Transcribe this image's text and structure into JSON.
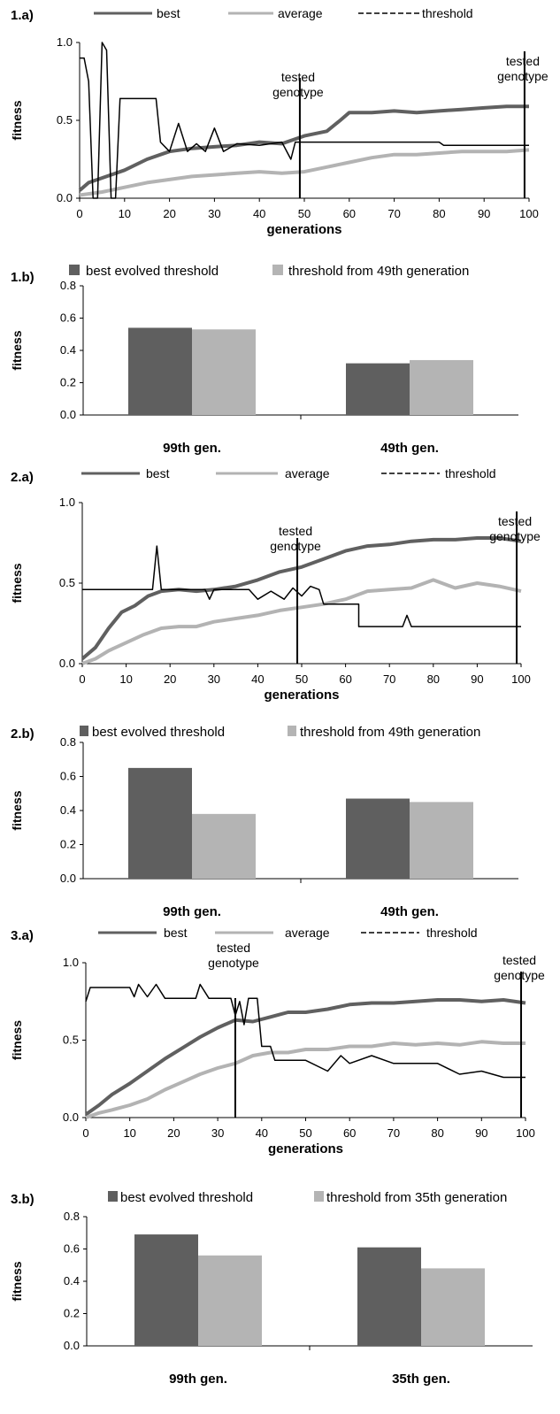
{
  "colors": {
    "best": "#606060",
    "average": "#b3b3b3",
    "threshold": "#000000",
    "bar_best": "#5f5f5f",
    "bar_thr": "#b4b4b4"
  },
  "chart_data": [
    {
      "id": "1a",
      "panel_label": "1.a)",
      "type": "line",
      "xlabel": "generations",
      "ylabel": "fitness",
      "xlim": [
        0,
        100
      ],
      "ylim": [
        0,
        1
      ],
      "xticks": [
        "0",
        "10",
        "20",
        "30",
        "40",
        "50",
        "60",
        "70",
        "80",
        "90",
        "100"
      ],
      "yticks": [
        "0.0",
        "0.5",
        "1.0"
      ],
      "legend": [
        "best",
        "average",
        "threshold"
      ],
      "annotations": [
        {
          "text": "tested genotype",
          "x": 49
        },
        {
          "text": "tested genotype",
          "x": 99
        }
      ],
      "series": [
        {
          "name": "best",
          "points": [
            [
              0,
              0.05
            ],
            [
              2,
              0.1
            ],
            [
              5,
              0.13
            ],
            [
              10,
              0.18
            ],
            [
              15,
              0.25
            ],
            [
              20,
              0.3
            ],
            [
              25,
              0.32
            ],
            [
              30,
              0.33
            ],
            [
              35,
              0.34
            ],
            [
              40,
              0.36
            ],
            [
              45,
              0.35
            ],
            [
              50,
              0.4
            ],
            [
              55,
              0.43
            ],
            [
              58,
              0.5
            ],
            [
              60,
              0.55
            ],
            [
              65,
              0.55
            ],
            [
              70,
              0.56
            ],
            [
              75,
              0.55
            ],
            [
              80,
              0.56
            ],
            [
              85,
              0.57
            ],
            [
              90,
              0.58
            ],
            [
              95,
              0.59
            ],
            [
              100,
              0.59
            ]
          ]
        },
        {
          "name": "average",
          "points": [
            [
              0,
              0.02
            ],
            [
              5,
              0.04
            ],
            [
              10,
              0.07
            ],
            [
              15,
              0.1
            ],
            [
              20,
              0.12
            ],
            [
              25,
              0.14
            ],
            [
              30,
              0.15
            ],
            [
              35,
              0.16
            ],
            [
              40,
              0.17
            ],
            [
              45,
              0.16
            ],
            [
              50,
              0.17
            ],
            [
              55,
              0.2
            ],
            [
              60,
              0.23
            ],
            [
              65,
              0.26
            ],
            [
              70,
              0.28
            ],
            [
              75,
              0.28
            ],
            [
              80,
              0.29
            ],
            [
              85,
              0.3
            ],
            [
              90,
              0.3
            ],
            [
              95,
              0.3
            ],
            [
              100,
              0.31
            ]
          ]
        },
        {
          "name": "threshold",
          "points": [
            [
              0,
              0.9
            ],
            [
              1,
              0.9
            ],
            [
              2,
              0.75
            ],
            [
              3,
              0
            ],
            [
              4,
              0
            ],
            [
              5,
              1
            ],
            [
              6,
              0.95
            ],
            [
              7,
              0
            ],
            [
              8,
              0
            ],
            [
              9,
              0.64
            ],
            [
              17,
              0.64
            ],
            [
              18,
              0.36
            ],
            [
              20,
              0.3
            ],
            [
              22,
              0.48
            ],
            [
              24,
              0.3
            ],
            [
              26,
              0.35
            ],
            [
              28,
              0.3
            ],
            [
              30,
              0.45
            ],
            [
              32,
              0.3
            ],
            [
              35,
              0.35
            ],
            [
              40,
              0.34
            ],
            [
              45,
              0.36
            ],
            [
              47,
              0.25
            ],
            [
              48,
              0.36
            ],
            [
              80,
              0.36
            ],
            [
              81,
              0.34
            ],
            [
              100,
              0.34
            ]
          ]
        }
      ]
    },
    {
      "id": "1b",
      "panel_label": "1.b)",
      "type": "bar",
      "ylabel": "fitness",
      "ylim": [
        0,
        0.8
      ],
      "yticks": [
        "0.0",
        "0.2",
        "0.4",
        "0.6",
        "0.8"
      ],
      "categories": [
        "99th gen.",
        "49th gen."
      ],
      "series": [
        {
          "name": "best evolved threshold",
          "values": [
            0.54,
            0.32
          ]
        },
        {
          "name": "threshold from 49th generation",
          "values": [
            0.53,
            0.34
          ]
        }
      ]
    },
    {
      "id": "2a",
      "panel_label": "2.a)",
      "type": "line",
      "xlabel": "generations",
      "ylabel": "fitness",
      "xlim": [
        0,
        100
      ],
      "ylim": [
        0,
        1
      ],
      "xticks": [
        "0",
        "10",
        "20",
        "30",
        "40",
        "50",
        "60",
        "70",
        "80",
        "90",
        "100"
      ],
      "yticks": [
        "0.0",
        "0.5",
        "1.0"
      ],
      "legend": [
        "best",
        "average",
        "threshold"
      ],
      "annotations": [
        {
          "text": "tested genotype",
          "x": 49
        },
        {
          "text": "tested genotype",
          "x": 99
        }
      ],
      "series": [
        {
          "name": "best",
          "points": [
            [
              0,
              0.03
            ],
            [
              3,
              0.1
            ],
            [
              6,
              0.22
            ],
            [
              9,
              0.32
            ],
            [
              12,
              0.36
            ],
            [
              15,
              0.42
            ],
            [
              18,
              0.45
            ],
            [
              22,
              0.46
            ],
            [
              26,
              0.45
            ],
            [
              30,
              0.46
            ],
            [
              35,
              0.48
            ],
            [
              40,
              0.52
            ],
            [
              45,
              0.57
            ],
            [
              50,
              0.6
            ],
            [
              55,
              0.65
            ],
            [
              60,
              0.7
            ],
            [
              65,
              0.73
            ],
            [
              70,
              0.74
            ],
            [
              75,
              0.76
            ],
            [
              80,
              0.77
            ],
            [
              85,
              0.77
            ],
            [
              90,
              0.78
            ],
            [
              95,
              0.78
            ],
            [
              100,
              0.76
            ]
          ]
        },
        {
          "name": "average",
          "points": [
            [
              0,
              0
            ],
            [
              3,
              0.03
            ],
            [
              6,
              0.08
            ],
            [
              10,
              0.13
            ],
            [
              14,
              0.18
            ],
            [
              18,
              0.22
            ],
            [
              22,
              0.23
            ],
            [
              26,
              0.23
            ],
            [
              30,
              0.26
            ],
            [
              35,
              0.28
            ],
            [
              40,
              0.3
            ],
            [
              45,
              0.33
            ],
            [
              50,
              0.35
            ],
            [
              55,
              0.37
            ],
            [
              60,
              0.4
            ],
            [
              65,
              0.45
            ],
            [
              70,
              0.46
            ],
            [
              75,
              0.47
            ],
            [
              80,
              0.52
            ],
            [
              85,
              0.47
            ],
            [
              90,
              0.5
            ],
            [
              95,
              0.48
            ],
            [
              100,
              0.45
            ]
          ]
        },
        {
          "name": "threshold",
          "points": [
            [
              0,
              0.46
            ],
            [
              16,
              0.46
            ],
            [
              17,
              0.73
            ],
            [
              18,
              0.46
            ],
            [
              28,
              0.46
            ],
            [
              29,
              0.4
            ],
            [
              30,
              0.46
            ],
            [
              38,
              0.46
            ],
            [
              40,
              0.4
            ],
            [
              43,
              0.45
            ],
            [
              46,
              0.4
            ],
            [
              48,
              0.47
            ],
            [
              50,
              0.42
            ],
            [
              52,
              0.48
            ],
            [
              54,
              0.46
            ],
            [
              55,
              0.37
            ],
            [
              63,
              0.37
            ],
            [
              63,
              0.23
            ],
            [
              73,
              0.23
            ],
            [
              74,
              0.3
            ],
            [
              75,
              0.23
            ],
            [
              100,
              0.23
            ]
          ]
        }
      ]
    },
    {
      "id": "2b",
      "panel_label": "2.b)",
      "type": "bar",
      "ylabel": "fitness",
      "ylim": [
        0,
        0.8
      ],
      "yticks": [
        "0.0",
        "0.2",
        "0.4",
        "0.6",
        "0.8"
      ],
      "categories": [
        "99th gen.",
        "49th gen."
      ],
      "series": [
        {
          "name": "best evolved threshold",
          "values": [
            0.65,
            0.47
          ]
        },
        {
          "name": "threshold from 49th generation",
          "values": [
            0.38,
            0.45
          ]
        }
      ]
    },
    {
      "id": "3a",
      "panel_label": "3.a)",
      "type": "line",
      "xlabel": "generations",
      "ylabel": "fitness",
      "xlim": [
        0,
        100
      ],
      "ylim": [
        0,
        1
      ],
      "xticks": [
        "0",
        "10",
        "20",
        "30",
        "40",
        "50",
        "60",
        "70",
        "80",
        "90",
        "100"
      ],
      "yticks": [
        "0.0",
        "0.5",
        "1.0"
      ],
      "legend": [
        "best",
        "average",
        "threshold"
      ],
      "annotations": [
        {
          "text": "tested genotype",
          "x": 34
        },
        {
          "text": "tested genotype",
          "x": 99
        }
      ],
      "series": [
        {
          "name": "best",
          "points": [
            [
              0,
              0.02
            ],
            [
              3,
              0.08
            ],
            [
              6,
              0.15
            ],
            [
              10,
              0.22
            ],
            [
              14,
              0.3
            ],
            [
              18,
              0.38
            ],
            [
              22,
              0.45
            ],
            [
              26,
              0.52
            ],
            [
              30,
              0.58
            ],
            [
              34,
              0.63
            ],
            [
              38,
              0.62
            ],
            [
              42,
              0.65
            ],
            [
              46,
              0.68
            ],
            [
              50,
              0.68
            ],
            [
              55,
              0.7
            ],
            [
              60,
              0.73
            ],
            [
              65,
              0.74
            ],
            [
              70,
              0.74
            ],
            [
              75,
              0.75
            ],
            [
              80,
              0.76
            ],
            [
              85,
              0.76
            ],
            [
              90,
              0.75
            ],
            [
              95,
              0.76
            ],
            [
              100,
              0.74
            ]
          ]
        },
        {
          "name": "average",
          "points": [
            [
              0,
              0
            ],
            [
              3,
              0.03
            ],
            [
              6,
              0.05
            ],
            [
              10,
              0.08
            ],
            [
              14,
              0.12
            ],
            [
              18,
              0.18
            ],
            [
              22,
              0.23
            ],
            [
              26,
              0.28
            ],
            [
              30,
              0.32
            ],
            [
              34,
              0.35
            ],
            [
              38,
              0.4
            ],
            [
              42,
              0.42
            ],
            [
              46,
              0.42
            ],
            [
              50,
              0.44
            ],
            [
              55,
              0.44
            ],
            [
              60,
              0.46
            ],
            [
              65,
              0.46
            ],
            [
              70,
              0.48
            ],
            [
              75,
              0.47
            ],
            [
              80,
              0.48
            ],
            [
              85,
              0.47
            ],
            [
              90,
              0.49
            ],
            [
              95,
              0.48
            ],
            [
              100,
              0.48
            ]
          ]
        },
        {
          "name": "threshold",
          "points": [
            [
              0,
              0.75
            ],
            [
              1,
              0.84
            ],
            [
              10,
              0.84
            ],
            [
              11,
              0.78
            ],
            [
              12,
              0.86
            ],
            [
              14,
              0.78
            ],
            [
              16,
              0.86
            ],
            [
              18,
              0.77
            ],
            [
              25,
              0.77
            ],
            [
              26,
              0.86
            ],
            [
              28,
              0.77
            ],
            [
              33,
              0.77
            ],
            [
              34,
              0.66
            ],
            [
              35,
              0.75
            ],
            [
              36,
              0.6
            ],
            [
              37,
              0.77
            ],
            [
              39,
              0.77
            ],
            [
              40,
              0.46
            ],
            [
              42,
              0.46
            ],
            [
              43,
              0.37
            ],
            [
              50,
              0.37
            ],
            [
              55,
              0.3
            ],
            [
              58,
              0.4
            ],
            [
              60,
              0.35
            ],
            [
              65,
              0.4
            ],
            [
              70,
              0.35
            ],
            [
              80,
              0.35
            ],
            [
              85,
              0.28
            ],
            [
              90,
              0.3
            ],
            [
              95,
              0.26
            ],
            [
              100,
              0.26
            ]
          ]
        }
      ]
    },
    {
      "id": "3b",
      "panel_label": "3.b)",
      "type": "bar",
      "ylabel": "fitness",
      "ylim": [
        0,
        0.8
      ],
      "yticks": [
        "0.0",
        "0.2",
        "0.4",
        "0.6",
        "0.8"
      ],
      "categories": [
        "99th gen.",
        "35th gen."
      ],
      "series": [
        {
          "name": "best evolved threshold",
          "values": [
            0.69,
            0.61
          ]
        },
        {
          "name": "threshold from 35th generation",
          "values": [
            0.56,
            0.48
          ]
        }
      ]
    }
  ]
}
